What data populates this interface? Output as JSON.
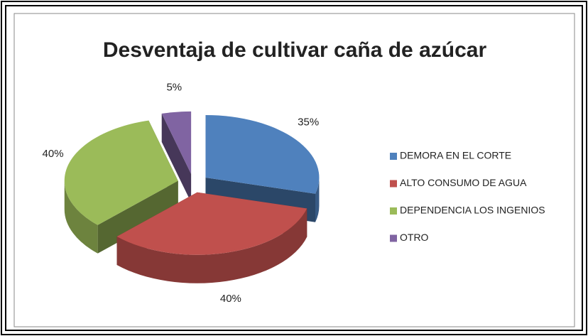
{
  "chart_data": {
    "type": "pie",
    "title": "Desventaja de cultivar caña de azúcar",
    "categories": [
      "DEMORA EN EL CORTE",
      "ALTO CONSUMO DE AGUA",
      "DEPENDENCIA LOS INGENIOS",
      "OTRO"
    ],
    "values": [
      35,
      40,
      40,
      5
    ],
    "value_labels": [
      "35%",
      "40%",
      "40%",
      "5%"
    ],
    "colors": [
      "#4f81bd",
      "#c0504d",
      "#9bbb59",
      "#8064a2"
    ],
    "legend": "right"
  }
}
